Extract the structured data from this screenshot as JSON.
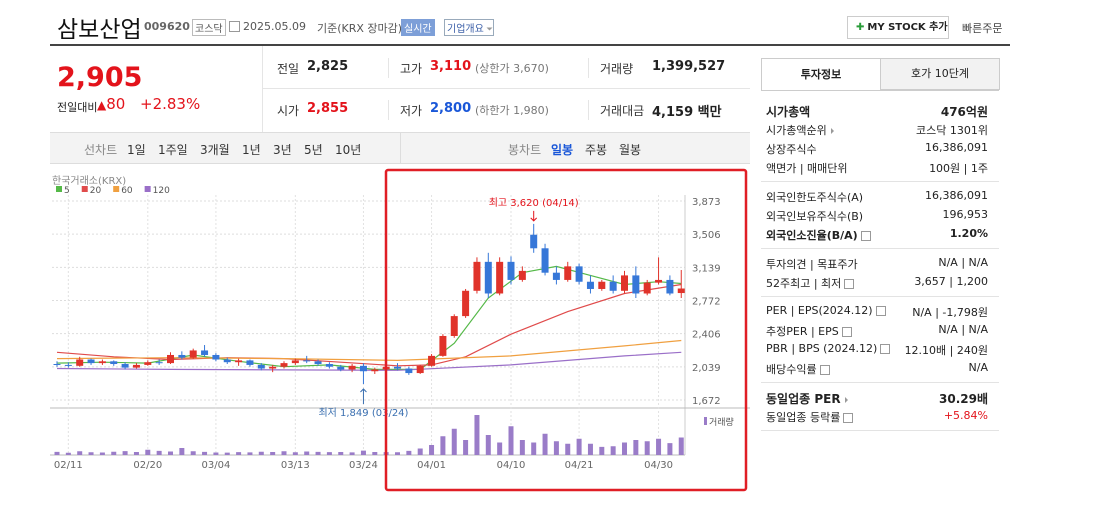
{
  "header": {
    "name": "삼보산업",
    "code": "009620",
    "market": "코스닥",
    "date": "2025.05.09",
    "basis": "기준(KRX 장마감)",
    "realtime": "실시간",
    "company_info": "기업개요",
    "my_stock": "MY STOCK 추가",
    "quick_order": "빠른주문"
  },
  "price": {
    "current": "2,905",
    "change_label": "전일대비",
    "change": "80",
    "change_rate": "+2.83%"
  },
  "summary": [
    [
      {
        "label": "전일",
        "value": "2,825"
      },
      {
        "label": "고가",
        "value": "3,110",
        "note": "(상한가 3,670)"
      },
      {
        "label": "거래량",
        "value": "1,399,527"
      }
    ],
    [
      {
        "label": "시가",
        "value": "2,855"
      },
      {
        "label": "저가",
        "value": "2,800",
        "note": "(하한가 1,980)"
      },
      {
        "label": "거래대금",
        "value": "4,159 백만"
      }
    ]
  ],
  "chart_tabs": {
    "line_chart": "선차트",
    "periods": [
      "1일",
      "1주일",
      "3개월",
      "1년",
      "3년",
      "5년",
      "10년"
    ],
    "candle_chart": "봉차트",
    "candle_periods": [
      "일봉",
      "주봉",
      "월봉"
    ]
  },
  "chart_data": {
    "type": "candlestick",
    "source": "한국거래소(KRX)",
    "volume_label": "거래량",
    "categories": [
      null,
      "02/11",
      null,
      null,
      null,
      null,
      null,
      null,
      "02/20",
      null,
      null,
      null,
      null,
      null,
      "03/04",
      null,
      null,
      null,
      null,
      null,
      null,
      "03/13",
      null,
      null,
      null,
      null,
      null,
      "03/24",
      null,
      null,
      null,
      null,
      null,
      "04/01",
      null,
      null,
      null,
      null,
      null,
      null,
      "04/10",
      null,
      null,
      null,
      null,
      null,
      "04/21",
      null,
      null,
      null,
      null,
      null,
      null,
      "04/30",
      null,
      null
    ],
    "open": [
      2070,
      2060,
      2050,
      2120,
      2080,
      2100,
      2070,
      2030,
      2060,
      2090,
      2080,
      2170,
      2140,
      2220,
      2170,
      2120,
      2090,
      2110,
      2060,
      2020,
      2040,
      2080,
      2110,
      2100,
      2070,
      2040,
      2010,
      2050,
      1990,
      2010,
      2040,
      2020,
      1970,
      2050,
      2160,
      2380,
      2600,
      2880,
      3200,
      2850,
      3200,
      3000,
      3500,
      3350,
      3080,
      3000,
      3150,
      2980,
      2900,
      2980,
      2880,
      3050,
      2850,
      2970,
      3000,
      2855
    ],
    "high": [
      2100,
      2090,
      2150,
      2130,
      2120,
      2110,
      2090,
      2080,
      2110,
      2120,
      2200,
      2210,
      2240,
      2280,
      2190,
      2140,
      2130,
      2120,
      2080,
      2060,
      2100,
      2130,
      2160,
      2120,
      2090,
      2060,
      2070,
      2080,
      2030,
      2060,
      2080,
      2040,
      2060,
      2180,
      2400,
      2620,
      2900,
      3250,
      3300,
      3250,
      3260,
      3150,
      3620,
      3400,
      3150,
      3200,
      3180,
      3050,
      3000,
      3050,
      3100,
      3150,
      3000,
      3250,
      3050,
      3110
    ],
    "low": [
      2040,
      2030,
      2040,
      2060,
      2060,
      2050,
      2010,
      2020,
      2050,
      2060,
      2070,
      2120,
      2130,
      2150,
      2100,
      2070,
      2050,
      2040,
      2000,
      1980,
      2020,
      2060,
      2080,
      2050,
      2020,
      1990,
      1980,
      1849,
      1960,
      1990,
      2000,
      1950,
      1960,
      2040,
      2150,
      2360,
      2580,
      2850,
      2800,
      2830,
      2950,
      2980,
      3300,
      3050,
      2950,
      2980,
      2950,
      2850,
      2880,
      2850,
      2850,
      2800,
      2830,
      2950,
      2830,
      2800
    ],
    "close": [
      2060,
      2050,
      2120,
      2080,
      2100,
      2070,
      2030,
      2060,
      2090,
      2080,
      2170,
      2140,
      2220,
      2170,
      2120,
      2090,
      2110,
      2060,
      2020,
      2040,
      2080,
      2110,
      2100,
      2070,
      2040,
      2010,
      2050,
      1990,
      2010,
      2040,
      2020,
      1970,
      2050,
      2160,
      2380,
      2600,
      2880,
      3200,
      2850,
      3200,
      3000,
      3100,
      3350,
      3080,
      3000,
      3150,
      2980,
      2900,
      2980,
      2880,
      3050,
      2850,
      2970,
      3000,
      2850,
      2905
    ],
    "volume": [
      250000,
      180000,
      300000,
      220000,
      200000,
      260000,
      310000,
      240000,
      420000,
      330000,
      280000,
      560000,
      300000,
      250000,
      200000,
      190000,
      230000,
      210000,
      260000,
      240000,
      300000,
      220000,
      280000,
      250000,
      230000,
      240000,
      210000,
      350000,
      240000,
      230000,
      220000,
      330000,
      520000,
      800000,
      1500000,
      2100000,
      1200000,
      3200000,
      1600000,
      1000000,
      2300000,
      1200000,
      1000000,
      1700000,
      1100000,
      900000,
      1300000,
      900000,
      650000,
      700000,
      1000000,
      1200000,
      1100000,
      1300000,
      950000,
      1399527
    ],
    "up_color": "#e0332a",
    "down_color": "#3677d8",
    "volume_color": "#9a7cc8",
    "ylim": [
      1672,
      3873
    ],
    "yticks": [
      {
        "value": 3873,
        "label": "3,873"
      },
      {
        "value": 3506,
        "label": "3,506"
      },
      {
        "value": 3139,
        "label": "3,139"
      },
      {
        "value": 2772,
        "label": "2,772"
      },
      {
        "value": 2406,
        "label": "2,406"
      },
      {
        "value": 2039,
        "label": "2,039"
      },
      {
        "value": 1672,
        "label": "1,672"
      }
    ],
    "ma": [
      {
        "name": "5",
        "color": "#55b948",
        "x": [
          0,
          4,
          8,
          12,
          16,
          20,
          24,
          28,
          32,
          35,
          38,
          41,
          44,
          47,
          50,
          53,
          55
        ],
        "values": [
          2080,
          2090,
          2080,
          2170,
          2100,
          2040,
          2060,
          2010,
          2010,
          2300,
          2800,
          3080,
          3150,
          3050,
          2950,
          2980,
          2960
        ]
      },
      {
        "name": "20",
        "color": "#e04b4b",
        "x": [
          0,
          5,
          10,
          15,
          20,
          25,
          30,
          33,
          36,
          40,
          45,
          50,
          55
        ],
        "values": [
          2200,
          2150,
          2120,
          2140,
          2130,
          2090,
          2050,
          2060,
          2150,
          2400,
          2650,
          2850,
          2950
        ]
      },
      {
        "name": "60",
        "color": "#f0a040",
        "x": [
          0,
          10,
          20,
          30,
          40,
          50,
          55
        ],
        "values": [
          2130,
          2140,
          2130,
          2110,
          2160,
          2270,
          2330
        ]
      },
      {
        "name": "120",
        "color": "#9a6fc8",
        "x": [
          0,
          10,
          20,
          30,
          40,
          50,
          55
        ],
        "values": [
          2020,
          2010,
          2005,
          2000,
          2060,
          2160,
          2200
        ]
      }
    ],
    "annotations": [
      {
        "text": "최고 3,620 (04/14)",
        "index": 42,
        "value": 3620
      },
      {
        "text": "최저 1,849 (03/24)",
        "index": 27,
        "value": 1849
      }
    ]
  },
  "right_panel": {
    "tabs": [
      "투자정보",
      "호가 10단계"
    ],
    "sections": [
      [
        {
          "label": "시가총액",
          "value": "476억원"
        },
        {
          "label": "시가총액순위",
          "value": "코스닥 1301위"
        },
        {
          "label": "상장주식수",
          "value": "16,386,091"
        },
        {
          "label": "액면가 | 매매단위",
          "value": "100원 | 1주"
        }
      ],
      [
        {
          "label": "외국인한도주식수(A)",
          "value": "16,386,091"
        },
        {
          "label": "외국인보유주식수(B)",
          "value": "196,953"
        },
        {
          "label": "외국인소진율(B/A)",
          "value": "1.20%"
        }
      ],
      [
        {
          "label": "투자의견 | 목표주가",
          "value": "N/A | N/A"
        },
        {
          "label": "52주최고 | 최저",
          "value": "3,657 | 1,200"
        }
      ],
      [
        {
          "label": "PER | EPS(2024.12)",
          "value": "N/A | -1,798원"
        },
        {
          "label": "추정PER | EPS",
          "value": "N/A | N/A"
        },
        {
          "label": "PBR | BPS (2024.12)",
          "value": "12.10배 | 240원"
        },
        {
          "label": "배당수익률",
          "value": "N/A"
        }
      ],
      [
        {
          "label": "동일업종 PER",
          "value": "30.29배"
        },
        {
          "label": "동일업종 등락률",
          "value": "+5.84%"
        }
      ]
    ]
  }
}
